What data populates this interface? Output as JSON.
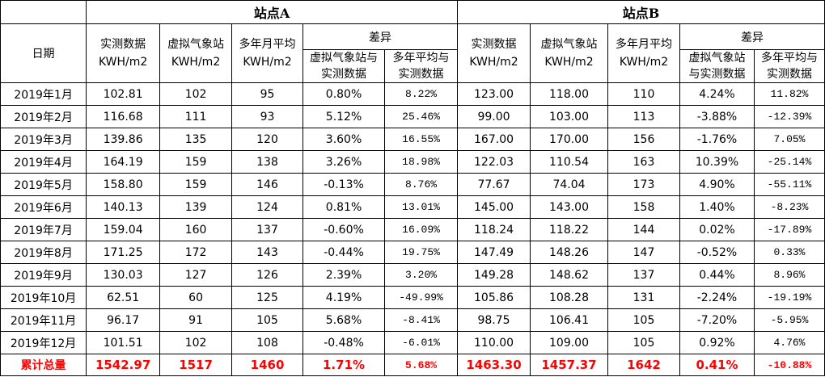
{
  "header": {
    "site_a": "站点A",
    "site_b": "站点B",
    "date_col": "日期",
    "measured": [
      "实测数据",
      "KWH/m2"
    ],
    "virtual": [
      "虚拟气象站",
      "KWH/m2"
    ],
    "avg": [
      "多年月平均",
      "KWH/m2"
    ],
    "diff": "差异",
    "a_diff_virtual": [
      "虚拟气象站与",
      "实测数据"
    ],
    "a_diff_avg": [
      "多年平均与",
      "实测数据"
    ],
    "b_diff_virtual": [
      "虚拟气象站",
      "与实测数据"
    ],
    "b_diff_avg": [
      "多年平均与",
      "实测数据"
    ]
  },
  "rows": [
    {
      "date": "2019年1月",
      "a_meas": "102.81",
      "a_virt": "102",
      "a_avg": "95",
      "a_d1": "0.80%",
      "a_d2": "8.22%",
      "b_meas": "123.00",
      "b_virt": "118.00",
      "b_avg": "110",
      "b_d1": "4.24%",
      "b_d2": "11.82%"
    },
    {
      "date": "2019年2月",
      "a_meas": "116.68",
      "a_virt": "111",
      "a_avg": "93",
      "a_d1": "5.12%",
      "a_d2": "25.46%",
      "b_meas": "99.00",
      "b_virt": "103.00",
      "b_avg": "113",
      "b_d1": "-3.88%",
      "b_d2": "-12.39%"
    },
    {
      "date": "2019年3月",
      "a_meas": "139.86",
      "a_virt": "135",
      "a_avg": "120",
      "a_d1": "3.60%",
      "a_d2": "16.55%",
      "b_meas": "167.00",
      "b_virt": "170.00",
      "b_avg": "156",
      "b_d1": "-1.76%",
      "b_d2": "7.05%"
    },
    {
      "date": "2019年4月",
      "a_meas": "164.19",
      "a_virt": "159",
      "a_avg": "138",
      "a_d1": "3.26%",
      "a_d2": "18.98%",
      "b_meas": "122.03",
      "b_virt": "110.54",
      "b_avg": "163",
      "b_d1": "10.39%",
      "b_d2": "-25.14%"
    },
    {
      "date": "2019年5月",
      "a_meas": "158.80",
      "a_virt": "159",
      "a_avg": "146",
      "a_d1": "-0.13%",
      "a_d2": "8.76%",
      "b_meas": "77.67",
      "b_virt": "74.04",
      "b_avg": "173",
      "b_d1": "4.90%",
      "b_d2": "-55.11%"
    },
    {
      "date": "2019年6月",
      "a_meas": "140.13",
      "a_virt": "139",
      "a_avg": "124",
      "a_d1": "0.81%",
      "a_d2": "13.01%",
      "b_meas": "145.00",
      "b_virt": "143.00",
      "b_avg": "158",
      "b_d1": "1.40%",
      "b_d2": "-8.23%"
    },
    {
      "date": "2019年7月",
      "a_meas": "159.04",
      "a_virt": "160",
      "a_avg": "137",
      "a_d1": "-0.60%",
      "a_d2": "16.09%",
      "b_meas": "118.24",
      "b_virt": "118.22",
      "b_avg": "144",
      "b_d1": "0.02%",
      "b_d2": "-17.89%"
    },
    {
      "date": "2019年8月",
      "a_meas": "171.25",
      "a_virt": "172",
      "a_avg": "143",
      "a_d1": "-0.44%",
      "a_d2": "19.75%",
      "b_meas": "147.49",
      "b_virt": "148.26",
      "b_avg": "147",
      "b_d1": "-0.52%",
      "b_d2": "0.33%"
    },
    {
      "date": "2019年9月",
      "a_meas": "130.03",
      "a_virt": "127",
      "a_avg": "126",
      "a_d1": "2.39%",
      "a_d2": "3.20%",
      "b_meas": "149.28",
      "b_virt": "148.62",
      "b_avg": "137",
      "b_d1": "0.44%",
      "b_d2": "8.96%"
    },
    {
      "date": "2019年10月",
      "a_meas": "62.51",
      "a_virt": "60",
      "a_avg": "125",
      "a_d1": "4.19%",
      "a_d2": "-49.99%",
      "b_meas": "105.86",
      "b_virt": "108.28",
      "b_avg": "131",
      "b_d1": "-2.24%",
      "b_d2": "-19.19%"
    },
    {
      "date": "2019年11月",
      "a_meas": "96.17",
      "a_virt": "91",
      "a_avg": "105",
      "a_d1": "5.68%",
      "a_d2": "-8.41%",
      "b_meas": "98.75",
      "b_virt": "106.41",
      "b_avg": "105",
      "b_d1": "-7.20%",
      "b_d2": "-5.95%"
    },
    {
      "date": "2019年12月",
      "a_meas": "101.51",
      "a_virt": "102",
      "a_avg": "108",
      "a_d1": "-0.48%",
      "a_d2": "-6.01%",
      "b_meas": "110.00",
      "b_virt": "109.00",
      "b_avg": "105",
      "b_d1": "0.92%",
      "b_d2": "4.76%"
    }
  ],
  "total": {
    "date": "累计总量",
    "a_meas": "1542.97",
    "a_virt": "1517",
    "a_avg": "1460",
    "a_d1": "1.71%",
    "a_d2": "5.68%",
    "b_meas": "1463.30",
    "b_virt": "1457.37",
    "b_avg": "1642",
    "b_d1": "0.41%",
    "b_d2": "-10.88%"
  },
  "colors": {
    "border": "#000000",
    "total_text": "#ff0000",
    "background": "#ffffff"
  }
}
